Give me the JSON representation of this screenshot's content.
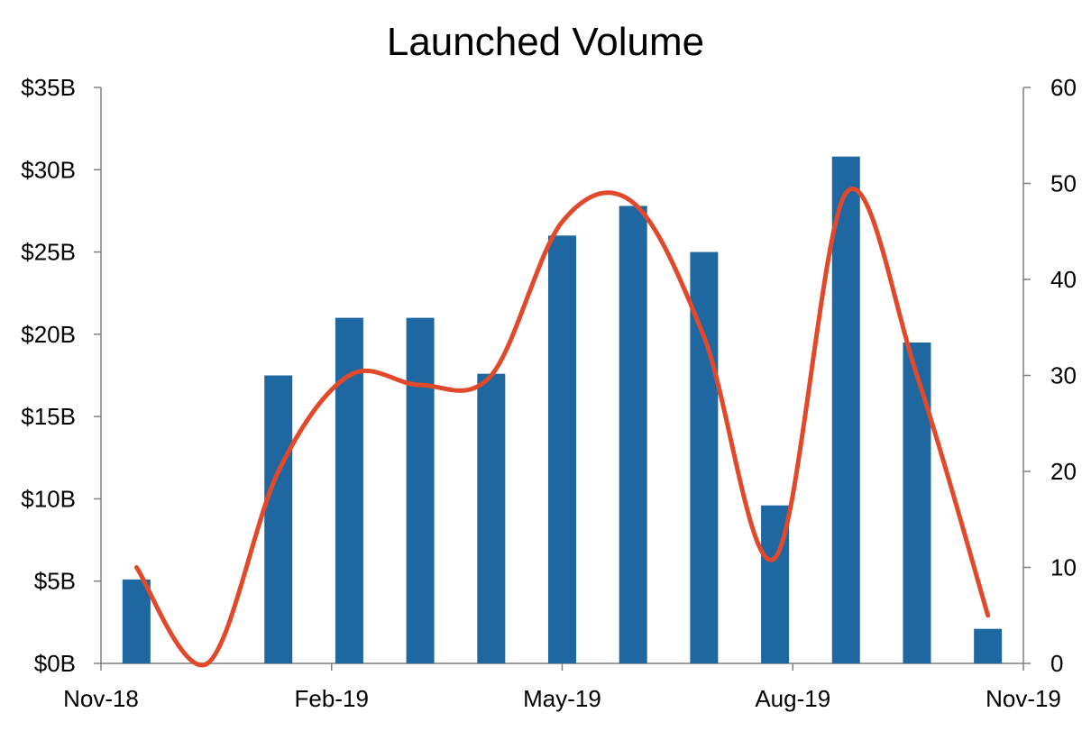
{
  "chart_data": {
    "type": "bar",
    "title": "Launched Volume",
    "xlabel": "",
    "ylabel": "",
    "categories": [
      "Nov-18",
      "Dec-18",
      "Jan-19",
      "Feb-19",
      "Mar-19",
      "Apr-19",
      "May-19",
      "Jun-19",
      "Jul-19",
      "Aug-19",
      "Sep-19",
      "Oct-19",
      "Nov-19"
    ],
    "x_tick_labels": [
      "Nov-18",
      "Feb-19",
      "May-19",
      "Aug-19",
      "Nov-19"
    ],
    "series": [
      {
        "type": "bar",
        "axis": "left",
        "color": "#1f67a1",
        "values": [
          5.1,
          0,
          17.5,
          21.0,
          21.0,
          17.6,
          26.0,
          27.8,
          25.0,
          9.6,
          30.8,
          19.5,
          2.1
        ]
      },
      {
        "type": "line",
        "axis": "right",
        "smooth": true,
        "color": "#e2492a",
        "values": [
          10,
          0,
          20,
          30,
          29,
          30,
          46,
          48,
          34,
          11,
          49,
          30,
          5
        ]
      }
    ],
    "y_left": {
      "ylim": [
        0,
        35
      ],
      "ticks": [
        0,
        5,
        10,
        15,
        20,
        25,
        30,
        35
      ],
      "tick_labels": [
        "$0B",
        "$5B",
        "$10B",
        "$15B",
        "$20B",
        "$25B",
        "$30B",
        "$35B"
      ]
    },
    "y_right": {
      "ylim": [
        0,
        60
      ],
      "ticks": [
        0,
        10,
        20,
        30,
        40,
        50,
        60
      ],
      "tick_labels": [
        "0",
        "10",
        "20",
        "30",
        "40",
        "50",
        "60"
      ]
    },
    "grid": false,
    "legend": "none"
  }
}
